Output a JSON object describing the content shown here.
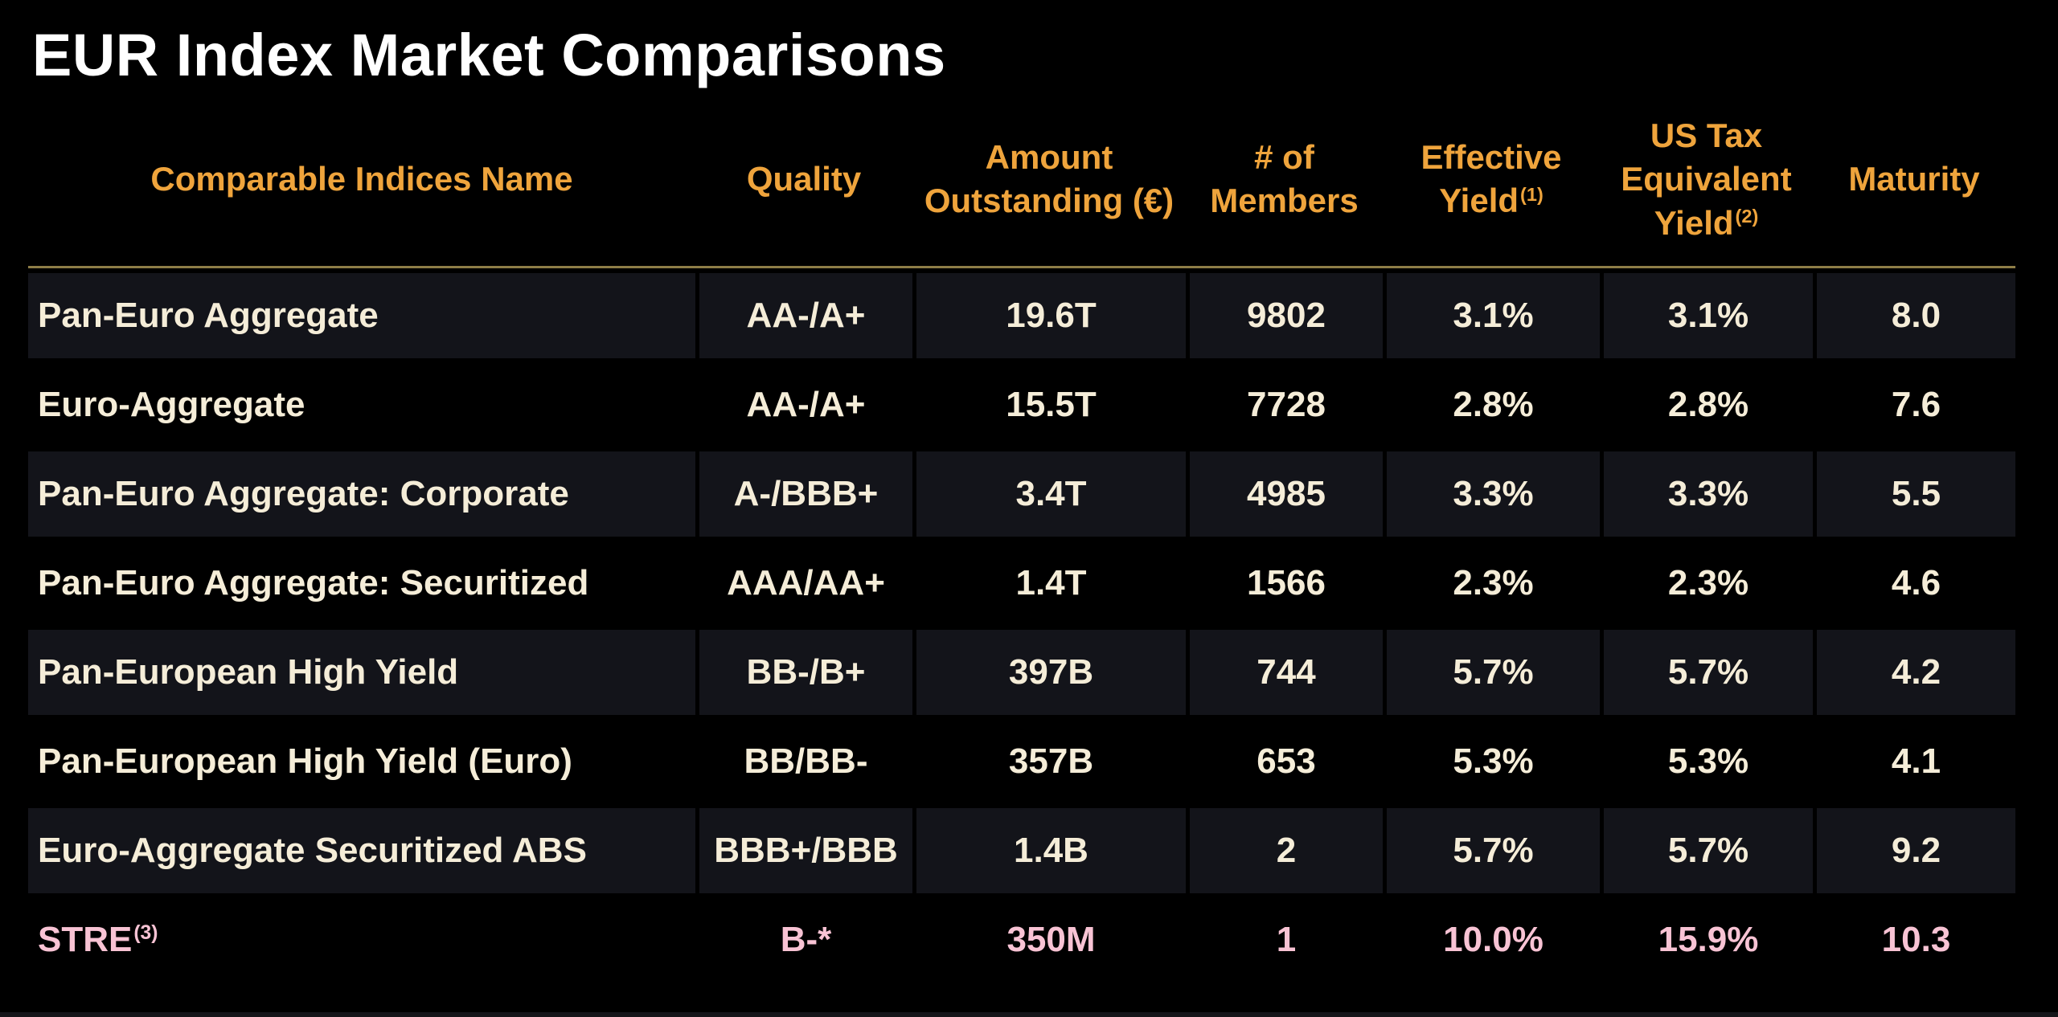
{
  "title": "EUR Index Market Comparisons",
  "colors": {
    "background": "#000000",
    "stripe": "#13141A",
    "header_text": "#EFA43C",
    "row_text": "#F5EDD8",
    "highlight_text": "#F8C3D4",
    "divider": "#8E7D47",
    "title_text": "#FFFFFF",
    "bottom_strip": "#16161A"
  },
  "table": {
    "columns": [
      {
        "label": "Comparable Indices Name"
      },
      {
        "label": "Quality"
      },
      {
        "label": "Amount Outstanding (€)"
      },
      {
        "label": "# of Members"
      },
      {
        "label": "Effective Yield",
        "superscript": "(1)"
      },
      {
        "label": "US Tax Equivalent Yield",
        "superscript": "(2)"
      },
      {
        "label": "Maturity"
      }
    ],
    "rows": [
      {
        "name": "Pan-Euro Aggregate",
        "quality": "AA-/A+",
        "amount": "19.6T",
        "members": "9802",
        "effective_yield": "3.1%",
        "us_tax_equivalent_yield": "3.1%",
        "maturity": "8.0"
      },
      {
        "name": "Euro-Aggregate",
        "quality": "AA-/A+",
        "amount": "15.5T",
        "members": "7728",
        "effective_yield": "2.8%",
        "us_tax_equivalent_yield": "2.8%",
        "maturity": "7.6"
      },
      {
        "name": "Pan-Euro Aggregate: Corporate",
        "quality": "A-/BBB+",
        "amount": "3.4T",
        "members": "4985",
        "effective_yield": "3.3%",
        "us_tax_equivalent_yield": "3.3%",
        "maturity": "5.5"
      },
      {
        "name": "Pan-Euro Aggregate: Securitized",
        "quality": "AAA/AA+",
        "amount": "1.4T",
        "members": "1566",
        "effective_yield": "2.3%",
        "us_tax_equivalent_yield": "2.3%",
        "maturity": "4.6"
      },
      {
        "name": "Pan-European High Yield",
        "quality": "BB-/B+",
        "amount": "397B",
        "members": "744",
        "effective_yield": "5.7%",
        "us_tax_equivalent_yield": "5.7%",
        "maturity": "4.2"
      },
      {
        "name": "Pan-European High Yield (Euro)",
        "quality": "BB/BB-",
        "amount": "357B",
        "members": "653",
        "effective_yield": "5.3%",
        "us_tax_equivalent_yield": "5.3%",
        "maturity": "4.1"
      },
      {
        "name": "Euro-Aggregate Securitized ABS",
        "quality": "BBB+/BBB",
        "amount": "1.4B",
        "members": "2",
        "effective_yield": "5.7%",
        "us_tax_equivalent_yield": "5.7%",
        "maturity": "9.2"
      },
      {
        "name": "STRE",
        "name_superscript": "(3)",
        "quality": "B-*",
        "amount": "350M",
        "members": "1",
        "effective_yield": "10.0%",
        "us_tax_equivalent_yield": "15.9%",
        "maturity": "10.3",
        "highlight": true
      }
    ]
  }
}
